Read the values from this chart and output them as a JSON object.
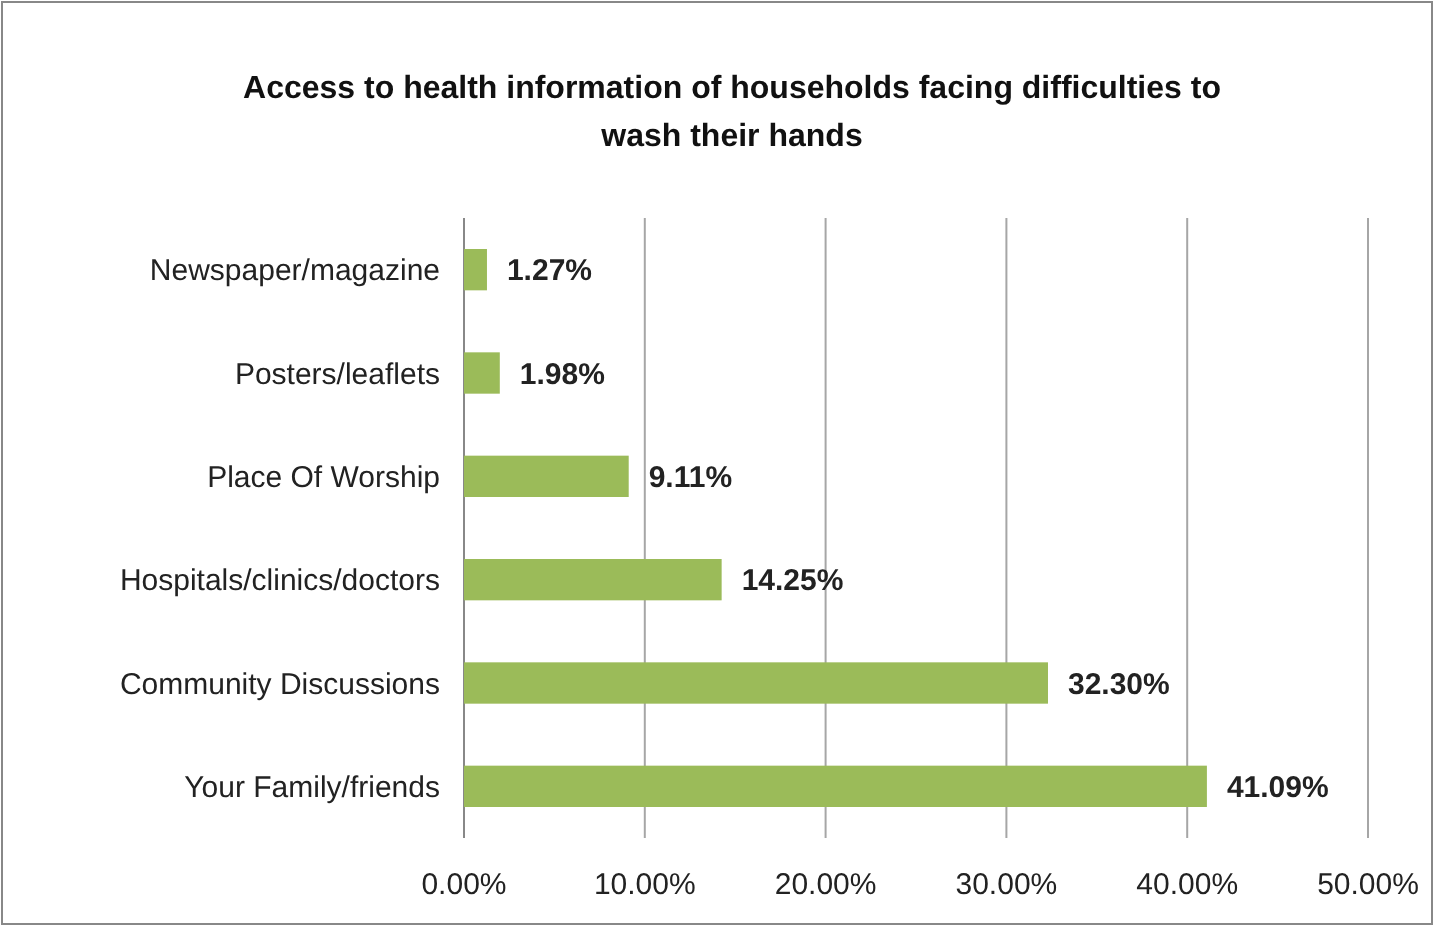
{
  "chart_data": {
    "type": "bar",
    "orientation": "horizontal",
    "title": "Access to health information of households facing difficulties to wash their hands",
    "categories": [
      "Newspaper/magazine",
      "Posters/leaflets",
      "Place Of Worship",
      "Hospitals/clinics/doctors",
      "Community Discussions",
      "Your Family/friends"
    ],
    "values": [
      1.27,
      1.98,
      9.11,
      14.25,
      32.3,
      41.09
    ],
    "value_labels": [
      "1.27%",
      "1.98%",
      "9.11%",
      "14.25%",
      "32.30%",
      "41.09%"
    ],
    "color": "#9bbb59",
    "xlim": [
      0,
      50
    ],
    "xticks": [
      {
        "value": 0,
        "label": "0.00%"
      },
      {
        "value": 10,
        "label": "10.00%"
      },
      {
        "value": 20,
        "label": "20.00%"
      },
      {
        "value": 30,
        "label": "30.00%"
      },
      {
        "value": 40,
        "label": "40.00%"
      },
      {
        "value": 50,
        "label": "50.00%"
      }
    ],
    "grid": "x"
  }
}
